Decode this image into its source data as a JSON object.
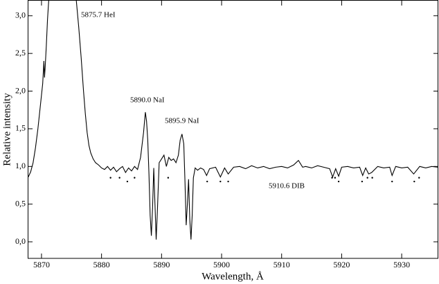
{
  "chart_data": {
    "type": "line",
    "x_label": "Wavelength, Å",
    "y_label": "Relative intensity",
    "color": "#000000",
    "xlim": [
      5867.7,
      5936.1
    ],
    "ylim": [
      -0.22,
      3.2
    ],
    "xticks": [
      5870,
      5880,
      5890,
      5900,
      5910,
      5920,
      5930
    ],
    "yticks": [
      {
        "value": 0.0,
        "label": "0,0"
      },
      {
        "value": 0.5,
        "label": "0,5"
      },
      {
        "value": 1.0,
        "label": "1,0"
      },
      {
        "value": 1.5,
        "label": "1,5"
      },
      {
        "value": 2.0,
        "label": "2,0"
      },
      {
        "value": 2.5,
        "label": "2,5"
      },
      {
        "value": 3.0,
        "label": "3,0"
      }
    ],
    "x": [
      5867.8,
      5868.2,
      5868.6,
      5869.0,
      5869.4,
      5869.8,
      5870.2,
      5870.4,
      5870.5,
      5870.6,
      5870.8,
      5871.0,
      5871.2,
      5873.5,
      5875.8,
      5876.2,
      5876.6,
      5877.0,
      5877.3,
      5877.6,
      5877.9,
      5878.2,
      5878.6,
      5879.0,
      5879.5,
      5880.0,
      5880.5,
      5881.0,
      5881.5,
      5882.0,
      5882.5,
      5883.0,
      5883.5,
      5884.0,
      5884.5,
      5885.0,
      5885.5,
      5886.0,
      5886.5,
      5887.0,
      5887.3,
      5887.5,
      5887.7,
      5887.9,
      5888.1,
      5888.3,
      5888.5,
      5888.7,
      5888.9,
      5889.1,
      5889.3,
      5889.6,
      5890.0,
      5890.4,
      5890.8,
      5891.2,
      5891.6,
      5892.0,
      5892.4,
      5892.8,
      5893.1,
      5893.4,
      5893.7,
      5893.9,
      5894.1,
      5894.3,
      5894.5,
      5894.7,
      5894.9,
      5895.1,
      5895.3,
      5895.6,
      5896.0,
      5896.5,
      5897,
      5897.5,
      5898,
      5899,
      5899.8,
      5900.5,
      5901.1,
      5902,
      5903,
      5904,
      5905,
      5906,
      5907,
      5908,
      5909,
      5910,
      5911,
      5912,
      5912.8,
      5913.5,
      5914,
      5915,
      5916,
      5917,
      5918,
      5918.5,
      5919,
      5919.5,
      5920,
      5921,
      5922,
      5923,
      5923.5,
      5924,
      5924.5,
      5925,
      5926,
      5927,
      5928,
      5928.4,
      5929,
      5930,
      5931,
      5932,
      5933,
      5934,
      5935,
      5936
    ],
    "values": [
      0.86,
      0.93,
      1.05,
      1.25,
      1.5,
      1.8,
      2.1,
      2.4,
      2.18,
      2.3,
      2.6,
      2.95,
      3.2,
      null,
      3.2,
      2.85,
      2.45,
      2.0,
      1.7,
      1.45,
      1.28,
      1.18,
      1.1,
      1.05,
      1.02,
      0.98,
      0.96,
      1.0,
      0.95,
      0.99,
      0.93,
      0.97,
      1.0,
      0.92,
      0.98,
      0.94,
      1.0,
      0.96,
      1.12,
      1.45,
      1.72,
      1.6,
      1.35,
      0.9,
      0.35,
      0.08,
      0.45,
      0.98,
      0.5,
      0.03,
      0.4,
      1.05,
      1.1,
      1.15,
      1.0,
      1.12,
      1.08,
      1.1,
      1.05,
      1.15,
      1.35,
      1.43,
      1.3,
      0.8,
      0.22,
      0.5,
      0.83,
      0.3,
      0.03,
      0.35,
      0.85,
      0.98,
      0.95,
      0.98,
      0.96,
      0.88,
      0.97,
      0.99,
      0.86,
      0.98,
      0.9,
      0.99,
      1.0,
      0.97,
      1.01,
      0.98,
      1.0,
      0.97,
      0.99,
      1.0,
      0.98,
      1.02,
      1.08,
      0.99,
      1.0,
      0.98,
      1.01,
      0.99,
      0.97,
      0.86,
      0.97,
      0.87,
      0.99,
      1.0,
      0.98,
      0.99,
      0.88,
      0.98,
      0.9,
      0.92,
      1.0,
      0.98,
      0.99,
      0.88,
      1.0,
      0.98,
      0.99,
      0.9,
      1.0,
      0.98,
      1.0,
      0.99
    ],
    "markers": {
      "x": [
        5881.5,
        5883.0,
        5884.3,
        5885.5,
        5891.1,
        5897.6,
        5899.8,
        5901.1,
        5918.4,
        5918.9,
        5919.5,
        5923.4,
        5924.3,
        5925.1,
        5928.4,
        5932.1,
        5932.9
      ],
      "values": [
        0.85,
        0.85,
        0.8,
        0.85,
        0.85,
        0.8,
        0.8,
        0.8,
        0.85,
        0.85,
        0.8,
        0.8,
        0.85,
        0.85,
        0.8,
        0.8,
        0.85
      ]
    },
    "annotations": [
      "5875.7 HeI",
      "5890.0 NaI",
      "5895.9 NaI",
      "5910.6 DIB"
    ]
  }
}
